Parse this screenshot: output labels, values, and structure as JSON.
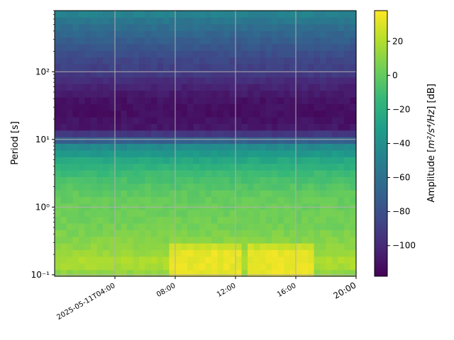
{
  "chart_data": {
    "type": "heatmap",
    "title": "",
    "xlabel": "",
    "ylabel": "Period [s]",
    "colorbar_label_main": "Amplitude [",
    "colorbar_label_unit": "m²/s⁴/Hz",
    "colorbar_label_tail": "] [dB]",
    "x_range_hours": [
      0,
      20
    ],
    "x_ticks": [
      {
        "hour": 4,
        "label": "2025-05-11T04:00"
      },
      {
        "hour": 8,
        "label": "08:00"
      },
      {
        "hour": 12,
        "label": "12:00"
      },
      {
        "hour": 16,
        "label": "16:00"
      },
      {
        "hour": 20,
        "label": "20:00"
      }
    ],
    "y_scale": "log",
    "y_range": [
      0.095,
      800
    ],
    "y_ticks": [
      {
        "value": 0.1,
        "label": "10⁻¹"
      },
      {
        "value": 1,
        "label": "10⁰"
      },
      {
        "value": 10,
        "label": "10¹"
      },
      {
        "value": 100,
        "label": "10²"
      }
    ],
    "grid": true,
    "colorscale": "viridis",
    "color_range": [
      -118,
      38
    ],
    "colorbar_ticks": [
      -100,
      -80,
      -60,
      -40,
      -20,
      0,
      20
    ],
    "profile_period_s": [
      800,
      600,
      400,
      250,
      150,
      100,
      70,
      40,
      25,
      15,
      11,
      8,
      5,
      3,
      1.5,
      1,
      0.5,
      0.3,
      0.2,
      0.15,
      0.12,
      0.1
    ],
    "profile_amplitude_db": [
      -45,
      -55,
      -65,
      -75,
      -85,
      -90,
      -100,
      -110,
      -112,
      -108,
      -85,
      -45,
      -25,
      -10,
      0,
      2,
      5,
      10,
      15,
      20,
      15,
      10
    ],
    "elevated_intervals_hours": [
      [
        7.5,
        12.5
      ],
      [
        12.8,
        17.2
      ]
    ],
    "elevated_shortperiod_amplitude_db": 33
  }
}
